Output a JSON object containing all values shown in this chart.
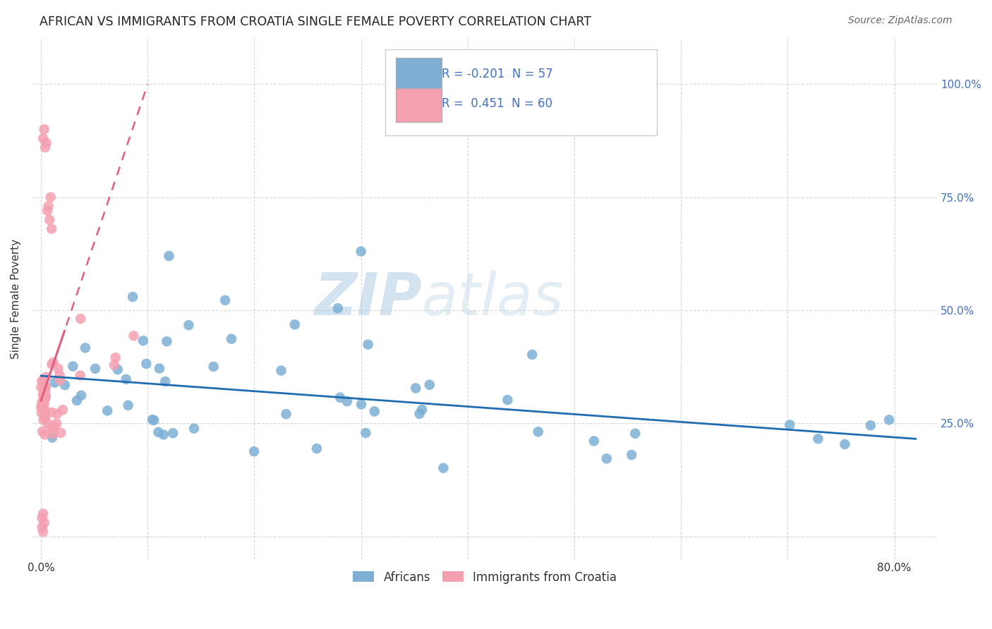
{
  "title": "AFRICAN VS IMMIGRANTS FROM CROATIA SINGLE FEMALE POVERTY CORRELATION CHART",
  "source": "Source: ZipAtlas.com",
  "ylabel": "Single Female Poverty",
  "blue_color": "#7EB0D5",
  "pink_color": "#F4A0B0",
  "blue_line_color": "#1F6CB0",
  "pink_line_color": "#E0607E",
  "watermark_zip": "ZIP",
  "watermark_atlas": "atlas",
  "legend_R_blue": "-0.201",
  "legend_N_blue": "57",
  "legend_R_pink": "0.451",
  "legend_N_pink": "60",
  "grid_color": "#CCCCCC",
  "tick_color": "#4472C4",
  "title_color": "#222222",
  "source_color": "#666666"
}
